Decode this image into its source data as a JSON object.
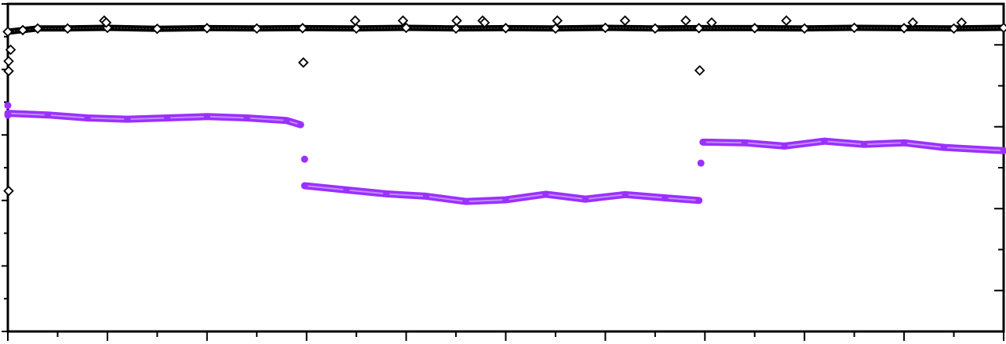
{
  "chart_data": {
    "type": "scatter",
    "title": "",
    "xlabel": "",
    "ylabel_left": "",
    "ylabel_right": "",
    "xlim": [
      0,
      1000
    ],
    "ylim_left": [
      0,
      1
    ],
    "ylim_right": [
      0,
      1
    ],
    "x_major_ticks": [
      0,
      100,
      200,
      300,
      400,
      500,
      600,
      700,
      800,
      900,
      1000
    ],
    "x_minor_ticks": [
      50,
      150,
      250,
      350,
      450,
      550,
      650,
      750,
      850,
      950
    ],
    "y_left_major_ticks": [
      0,
      0.2,
      0.4,
      0.6,
      0.8,
      1.0
    ],
    "y_left_minor_ticks": [
      0.1,
      0.3,
      0.5,
      0.7,
      0.9
    ],
    "y_right_major_ticks": [
      0.125,
      0.375,
      0.625,
      0.875
    ],
    "y_right_minor_ticks": [
      0.25,
      0.5,
      0.75
    ],
    "grid": false,
    "legend": "none",
    "tick_labels_visible": false,
    "series": [
      {
        "marker": "open-diamond",
        "color": "#000000",
        "axis": "left",
        "values": [
          [
            0,
            0.915
          ],
          [
            15,
            0.92
          ],
          [
            30,
            0.925
          ],
          [
            60,
            0.925
          ],
          [
            100,
            0.927
          ],
          [
            150,
            0.924
          ],
          [
            200,
            0.926
          ],
          [
            250,
            0.925
          ],
          [
            296,
            0.926
          ],
          [
            350,
            0.925
          ],
          [
            400,
            0.927
          ],
          [
            450,
            0.925
          ],
          [
            500,
            0.926
          ],
          [
            550,
            0.925
          ],
          [
            600,
            0.927
          ],
          [
            650,
            0.925
          ],
          [
            694,
            0.926
          ],
          [
            750,
            0.926
          ],
          [
            800,
            0.925
          ],
          [
            850,
            0.927
          ],
          [
            900,
            0.926
          ],
          [
            950,
            0.925
          ],
          [
            1000,
            0.927
          ]
        ],
        "outliers": [
          [
            0,
            0.825
          ],
          [
            0,
            0.795
          ],
          [
            0,
            0.429
          ],
          [
            2,
            0.86
          ],
          [
            96,
            0.949
          ],
          [
            98,
            0.943
          ],
          [
            296,
            0.821
          ],
          [
            348,
            0.949
          ],
          [
            396,
            0.949
          ],
          [
            450,
            0.949
          ],
          [
            476,
            0.949
          ],
          [
            478,
            0.943
          ],
          [
            551,
            0.949
          ],
          [
            619,
            0.949
          ],
          [
            680,
            0.949
          ],
          [
            694,
            0.797
          ],
          [
            706,
            0.943
          ],
          [
            781,
            0.949
          ],
          [
            908,
            0.943
          ],
          [
            957,
            0.943
          ]
        ]
      },
      {
        "marker": "filled-circle",
        "color": "#9b30ff",
        "axis": "right",
        "values": [
          [
            0,
            0.666
          ],
          [
            40,
            0.661
          ],
          [
            80,
            0.652
          ],
          [
            120,
            0.648
          ],
          [
            160,
            0.652
          ],
          [
            200,
            0.656
          ],
          [
            240,
            0.652
          ],
          [
            280,
            0.644
          ],
          [
            294,
            0.631
          ],
          [
            298,
            0.445
          ],
          [
            340,
            0.432
          ],
          [
            380,
            0.42
          ],
          [
            420,
            0.413
          ],
          [
            460,
            0.397
          ],
          [
            500,
            0.402
          ],
          [
            540,
            0.419
          ],
          [
            580,
            0.404
          ],
          [
            620,
            0.418
          ],
          [
            660,
            0.408
          ],
          [
            694,
            0.4
          ],
          [
            698,
            0.578
          ],
          [
            740,
            0.576
          ],
          [
            780,
            0.566
          ],
          [
            820,
            0.581
          ],
          [
            860,
            0.571
          ],
          [
            900,
            0.576
          ],
          [
            940,
            0.562
          ],
          [
            1000,
            0.552
          ]
        ],
        "outliers": [
          [
            0,
            0.69
          ],
          [
            0,
            0.66
          ],
          [
            298,
            0.526
          ],
          [
            696,
            0.514
          ]
        ]
      }
    ]
  }
}
